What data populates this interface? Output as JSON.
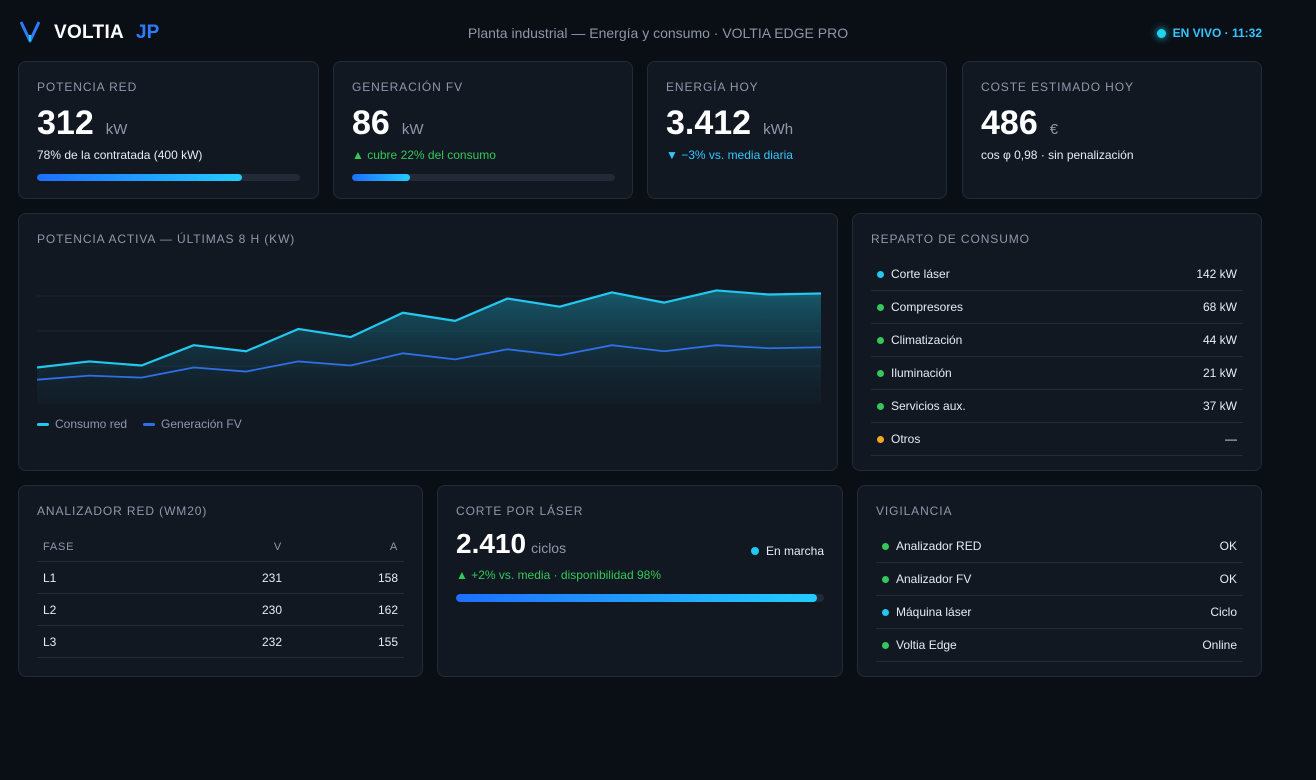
{
  "header": {
    "brand": "VOLTIA",
    "brand_suffix": "JP",
    "title": "Planta industrial — Energía y consumo · VOLTIA EDGE PRO",
    "live_label": "EN VIVO · 11:32"
  },
  "colors": {
    "accent_blue": "#2f7bff",
    "accent_cyan": "#22d3ee",
    "ok_green": "#34c759",
    "warn_orange": "#f5a623"
  },
  "kpis": {
    "grid_power": {
      "title": "POTENCIA RED",
      "value": "312",
      "unit": "kW",
      "sub": "78% de la contratada (400 kW)",
      "progress": 0.78
    },
    "pv_generation": {
      "title": "GENERACIÓN FV",
      "value": "86",
      "unit": "kW",
      "sub": "▲ cubre 22% del consumo",
      "progress": 0.22
    },
    "energy_today": {
      "title": "ENERGÍA HOY",
      "value": "3.412",
      "unit": "kWh",
      "sub": "▼ −3% vs. media diaria"
    },
    "cost_today": {
      "title": "COSTE ESTIMADO HOY",
      "value": "486",
      "unit": "€",
      "sub": "cos φ 0,98 · sin penalización"
    }
  },
  "chart_data": {
    "type": "area",
    "title": "POTENCIA ACTIVA — ÚLTIMAS 8 H (KW)",
    "x": [
      0,
      1,
      2,
      3,
      4,
      5,
      6,
      7,
      8,
      9,
      10,
      11,
      12,
      13,
      14,
      15
    ],
    "series": [
      {
        "name": "Consumo red",
        "color": "#22c8f0",
        "values": [
          180,
          210,
          190,
          290,
          260,
          370,
          330,
          450,
          410,
          520,
          480,
          550,
          500,
          560,
          540,
          545
        ]
      },
      {
        "name": "Generación FV",
        "color": "#2f6fe6",
        "values": [
          120,
          140,
          130,
          180,
          160,
          210,
          190,
          250,
          220,
          270,
          240,
          290,
          260,
          290,
          275,
          280
        ]
      }
    ],
    "ylim": [
      0,
      720
    ],
    "grid": true,
    "legend": "bottom-left"
  },
  "consumption": {
    "title": "REPARTO DE CONSUMO",
    "items": [
      {
        "label": "Corte láser",
        "value": "142 kW",
        "color": "#22c8f0"
      },
      {
        "label": "Compresores",
        "value": "68 kW",
        "color": "#34c759"
      },
      {
        "label": "Climatización",
        "value": "44 kW",
        "color": "#34c759"
      },
      {
        "label": "Iluminación",
        "value": "21 kW",
        "color": "#34c759"
      },
      {
        "label": "Servicios aux.",
        "value": "37 kW",
        "color": "#34c759"
      },
      {
        "label": "Otros",
        "value": "—",
        "color": "#f5a623"
      }
    ]
  },
  "analyzer": {
    "title": "ANALIZADOR RED (WM20)",
    "columns": [
      "FASE",
      "V",
      "A"
    ],
    "rows": [
      [
        "L1",
        "231",
        "158"
      ],
      [
        "L2",
        "230",
        "162"
      ],
      [
        "L3",
        "232",
        "155"
      ]
    ]
  },
  "laser": {
    "title": "CORTE POR LÁSER",
    "value": "2.410",
    "unit": "ciclos",
    "status": "En marcha",
    "sub": "▲ +2% vs. media · disponibilidad 98%",
    "progress": 0.98
  },
  "monitoring": {
    "title": "VIGILANCIA",
    "items": [
      {
        "label": "Analizador RED",
        "value": "OK",
        "color": "#34c759"
      },
      {
        "label": "Analizador FV",
        "value": "OK",
        "color": "#34c759"
      },
      {
        "label": "Máquina láser",
        "value": "Ciclo",
        "color": "#22c8f0"
      },
      {
        "label": "Voltia Edge",
        "value": "Online",
        "color": "#34c759"
      }
    ]
  }
}
